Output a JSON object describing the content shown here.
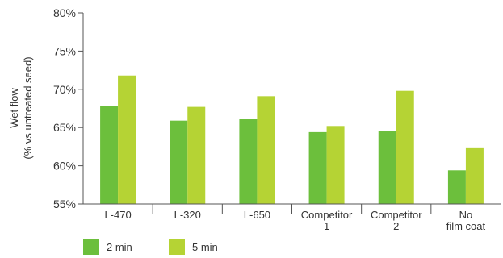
{
  "chart_data": {
    "type": "bar",
    "ylabel_lines": [
      "Wet flow",
      "(% vs untreated seed)"
    ],
    "y_ticks": [
      "80%",
      "75%",
      "70%",
      "65%",
      "60%",
      "55%"
    ],
    "ylim": [
      55,
      80
    ],
    "categories": [
      [
        "L-470"
      ],
      [
        "L-320"
      ],
      [
        "L-650"
      ],
      [
        "Competitor",
        "1"
      ],
      [
        "Competitor",
        "2"
      ],
      [
        "No",
        "film coat"
      ]
    ],
    "series": [
      {
        "name": "2 min",
        "color": "#6cbf3c",
        "values": [
          67.8,
          65.9,
          66.1,
          64.4,
          64.5,
          59.4
        ]
      },
      {
        "name": "5 min",
        "color": "#b5d334",
        "values": [
          71.8,
          67.7,
          69.1,
          65.2,
          69.8,
          62.4
        ]
      }
    ],
    "grid": false,
    "legend_position": "bottom-left"
  }
}
